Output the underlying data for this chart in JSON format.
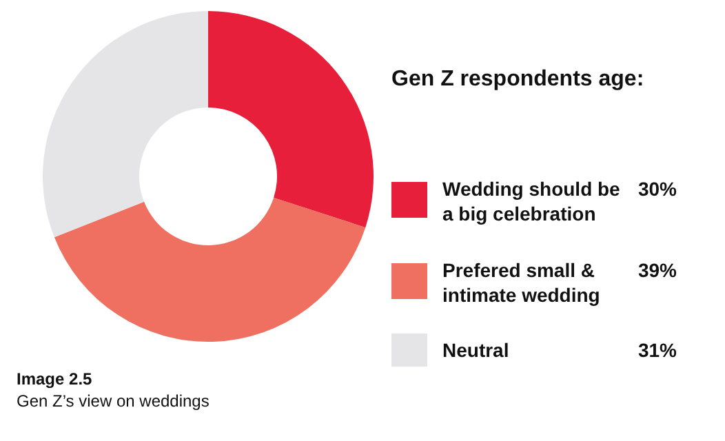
{
  "chart_data": {
    "type": "donut",
    "legend_title": "Gen Z respondents age:",
    "categories": [
      "Wedding should be a big celebration",
      "Prefered small & intimate wedding",
      "Neutral"
    ],
    "values": [
      30,
      39,
      31
    ],
    "colors": [
      "#e81f3a",
      "#ef6f61",
      "#e5e5e7"
    ],
    "value_labels": [
      "30%",
      "39%",
      "31%"
    ],
    "legend": "right",
    "annotations": [
      "Image 2.5",
      "Gen Z’s view on weddings"
    ]
  }
}
